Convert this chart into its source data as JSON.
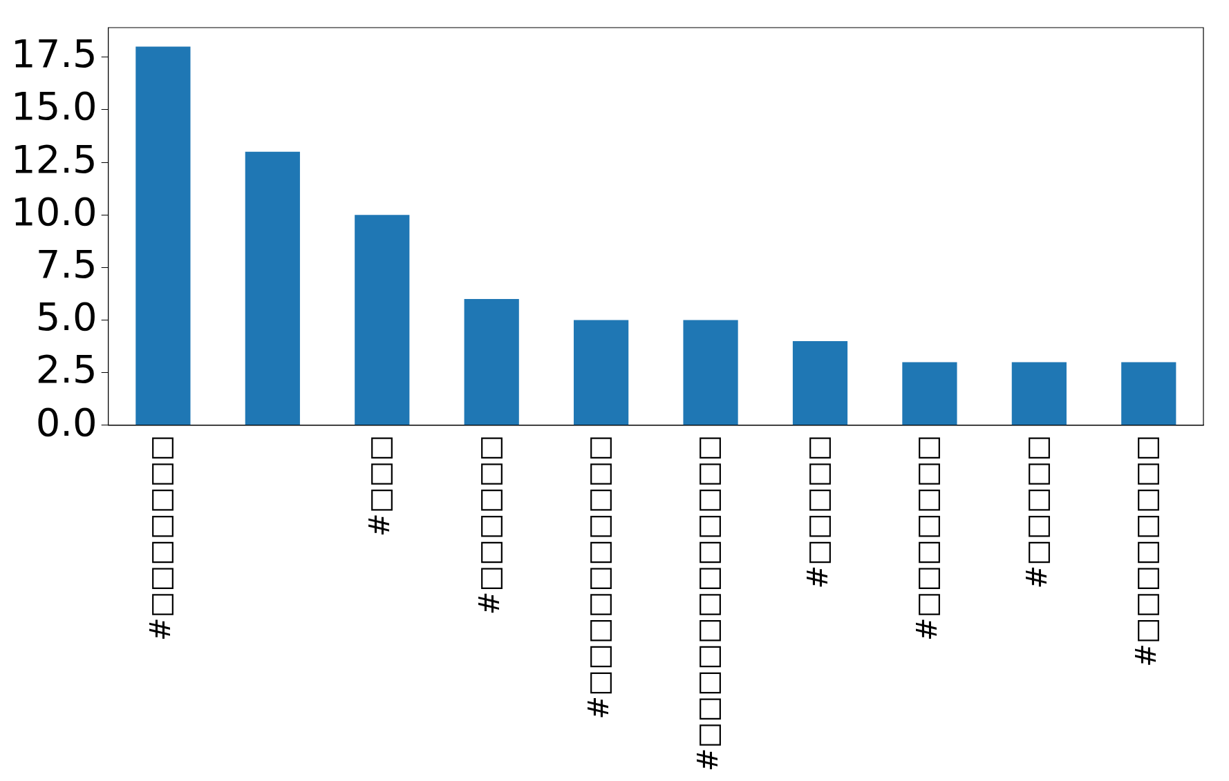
{
  "chart_data": {
    "type": "bar",
    "categories": [
      "#□□□□□□□",
      null,
      "#□□□",
      "#□□□□□□",
      "#□□□□□□□□□□",
      "#□□□□□□□□□□□□",
      "#□□□□□",
      "#□□□□□□□",
      "#□□□□□",
      "#□□□□□□□□"
    ],
    "values": [
      18,
      13,
      10,
      6,
      5,
      5,
      4,
      3,
      3,
      3
    ],
    "color": "#1f77b4",
    "ylim": [
      0,
      18.9
    ],
    "yticks": [
      {
        "value": 0,
        "label": "0.0"
      },
      {
        "value": 2.5,
        "label": "2.5"
      },
      {
        "value": 5,
        "label": "5.0"
      },
      {
        "value": 7.5,
        "label": "7.5"
      },
      {
        "value": 10,
        "label": "10.0"
      },
      {
        "value": 12.5,
        "label": "12.5"
      },
      {
        "value": 15,
        "label": "15.0"
      },
      {
        "value": 17.5,
        "label": "17.5"
      }
    ],
    "grid": false,
    "legend": false
  }
}
